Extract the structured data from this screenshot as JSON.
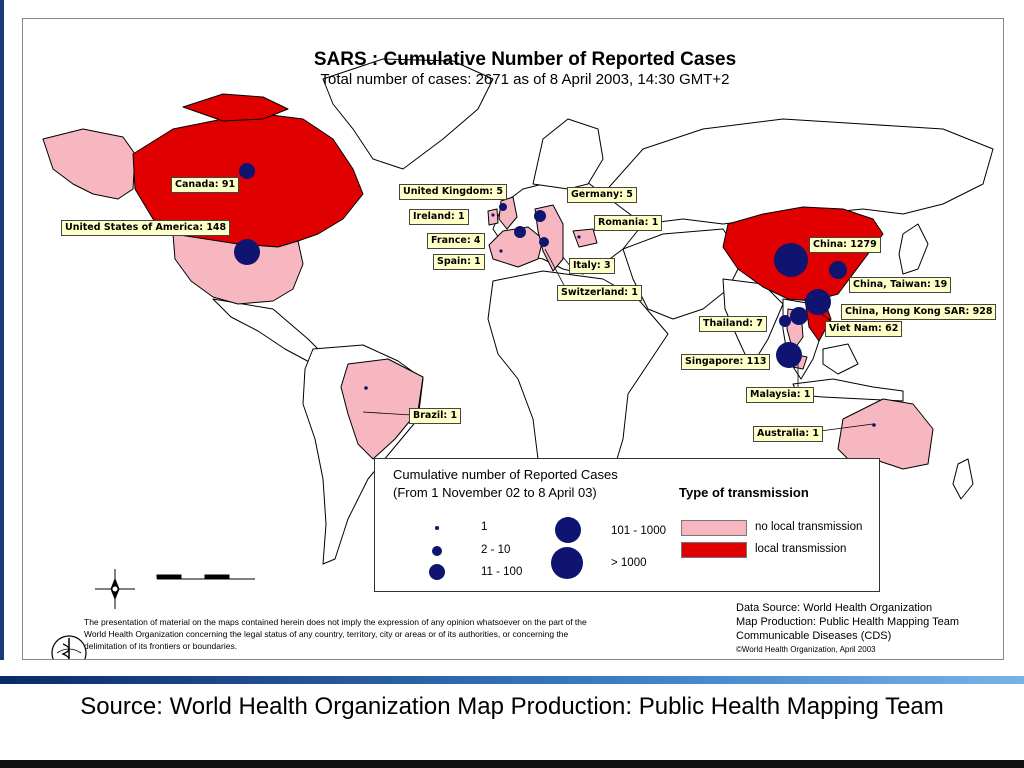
{
  "map": {
    "title": "SARS : Cumulative Number of Reported Cases",
    "subtitle": "Total number of cases: 2671 as of 8 April 2003, 14:30 GMT+2",
    "labels": {
      "canada": "Canada: 91",
      "usa": "United States of America: 148",
      "uk": "United Kingdom: 5",
      "ireland": "Ireland: 1",
      "france": "France: 4",
      "spain": "Spain: 1",
      "germany": "Germany: 5",
      "romania": "Romania: 1",
      "italy": "Italy: 3",
      "switzerland": "Switzerland: 1",
      "brazil": "Brazil: 1",
      "china": "China: 1279",
      "taiwan": "China, Taiwan: 19",
      "hongkong": "China, Hong Kong SAR: 928",
      "thailand": "Thailand: 7",
      "vietnam": "Viet Nam: 62",
      "singapore": "Singapore: 113",
      "malaysia": "Malaysia: 1",
      "australia": "Australia: 1"
    },
    "colors": {
      "local_transmission": "#e00000",
      "no_local_transmission": "#f7b7c0",
      "case_marker": "#0e1470"
    }
  },
  "legend": {
    "heading_line1": "Cumulative number of Reported Cases",
    "heading_line2": "(From 1 November 02 to 8 April 03)",
    "type_heading": "Type of transmission",
    "ranges": [
      "1",
      "2 - 10",
      "11 - 100",
      "101 - 1000",
      "> 1000"
    ],
    "no_local": "no local transmission",
    "local": "local transmission"
  },
  "disclaimer": "The presentation of material on the maps contained herein does not imply the expression of any opinion whatsoever on the part of the World Health Organization concerning the legal status of any country, territory, city or areas or of its authorities, or concerning the delimitation of its frontiers or boundaries.",
  "credits": {
    "line1": "Data Source: World Health Organization",
    "line2": "Map Production: Public Health Mapping Team",
    "line3": "Communicable Diseases (CDS)",
    "line4": "©World Health Organization, April 2003"
  },
  "caption": "Source: World Health Organization Map Production: Public Health Mapping Team"
}
